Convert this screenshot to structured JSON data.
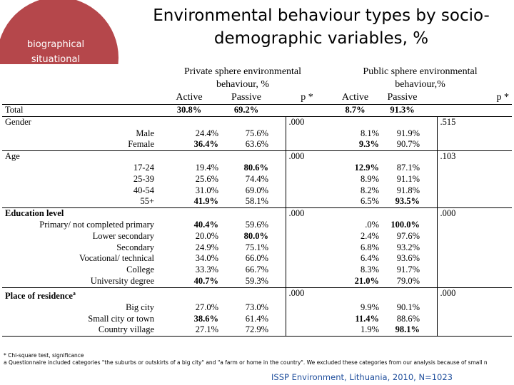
{
  "badge": {
    "line1": "biographical",
    "line2": "situational"
  },
  "title": {
    "line1": "Environmental behaviour types by socio-",
    "line2": "demographic variables, %"
  },
  "header": {
    "private_title1": "Private sphere environmental",
    "private_title2": "behaviour, %",
    "public_title1": "Public sphere environmental",
    "public_title2": "behaviour,%",
    "active": "Active",
    "passive": "Passive",
    "p": "p *"
  },
  "total": {
    "label": "Total",
    "priv_active": "30.8%",
    "priv_passive": "69.2%",
    "pub_active": "8.7%",
    "pub_passive": "91.3%"
  },
  "gender": {
    "label": "Gender",
    "p_priv": ".000",
    "p_pub": ".515",
    "rows": [
      {
        "label": "Male",
        "pa": "24.4%",
        "pp": "75.6%",
        "ua": "8.1%",
        "up": "91.9%"
      },
      {
        "label": "Female",
        "pa": "36.4%",
        "pp": "63.6%",
        "ua": "9.3%",
        "up": "90.7%"
      }
    ]
  },
  "age": {
    "label": "Age",
    "p_priv": ".000",
    "p_pub": ".103",
    "rows": [
      {
        "label": "17-24",
        "pa": "19.4%",
        "pp": "80.6%",
        "ua": "12.9%",
        "up": "87.1%"
      },
      {
        "label": "25-39",
        "pa": "25.6%",
        "pp": "74.4%",
        "ua": "8.9%",
        "up": "91.1%"
      },
      {
        "label": "40-54",
        "pa": "31.0%",
        "pp": "69.0%",
        "ua": "8.2%",
        "up": "91.8%"
      },
      {
        "label": "55+",
        "pa": "41.9%",
        "pp": "58.1%",
        "ua": "6.5%",
        "up": "93.5%"
      }
    ]
  },
  "education": {
    "label": "Education level",
    "p_priv": ".000",
    "p_pub": ".000",
    "rows": [
      {
        "label": "Primary/ not completed primary",
        "pa": "40.4%",
        "pp": "59.6%",
        "ua": ".0%",
        "up": "100.0%"
      },
      {
        "label": "Lower secondary",
        "pa": "20.0%",
        "pp": "80.0%",
        "ua": "2.4%",
        "up": "97.6%"
      },
      {
        "label": "Secondary",
        "pa": "24.9%",
        "pp": "75.1%",
        "ua": "6.8%",
        "up": "93.2%"
      },
      {
        "label": "Vocational/ technical",
        "pa": "34.0%",
        "pp": "66.0%",
        "ua": "6.4%",
        "up": "93.6%"
      },
      {
        "label": "College",
        "pa": "33.3%",
        "pp": "66.7%",
        "ua": "8.3%",
        "up": "91.7%"
      },
      {
        "label": "University degree",
        "pa": "40.7%",
        "pp": "59.3%",
        "ua": "21.0%",
        "up": "79.0%"
      }
    ]
  },
  "residence": {
    "label": "Place of residence",
    "sup": "a",
    "p_priv": ".000",
    "p_pub": ".000",
    "rows": [
      {
        "label": "Big city",
        "pa": "27.0%",
        "pp": "73.0%",
        "ua": "9.9%",
        "up": "90.1%"
      },
      {
        "label": "Small city or town",
        "pa": "38.6%",
        "pp": "61.4%",
        "ua": "11.4%",
        "up": "88.6%"
      },
      {
        "label": "Country village",
        "pa": "27.1%",
        "pp": "72.9%",
        "ua": "1.9%",
        "up": "98.1%"
      }
    ]
  },
  "footnotes": {
    "star": "* Chi-square test, significance",
    "a": "a Questionnaire included categories \"the suburbs or outskirts of a big city\" and \"a farm or home in the country\". We excluded these categories from our analysis because of small n"
  },
  "source": "ISSP Environment, Lithuania, 2010, N=1023",
  "colors": {
    "badge": "#b5474b",
    "source_text": "#1f4e9c"
  }
}
